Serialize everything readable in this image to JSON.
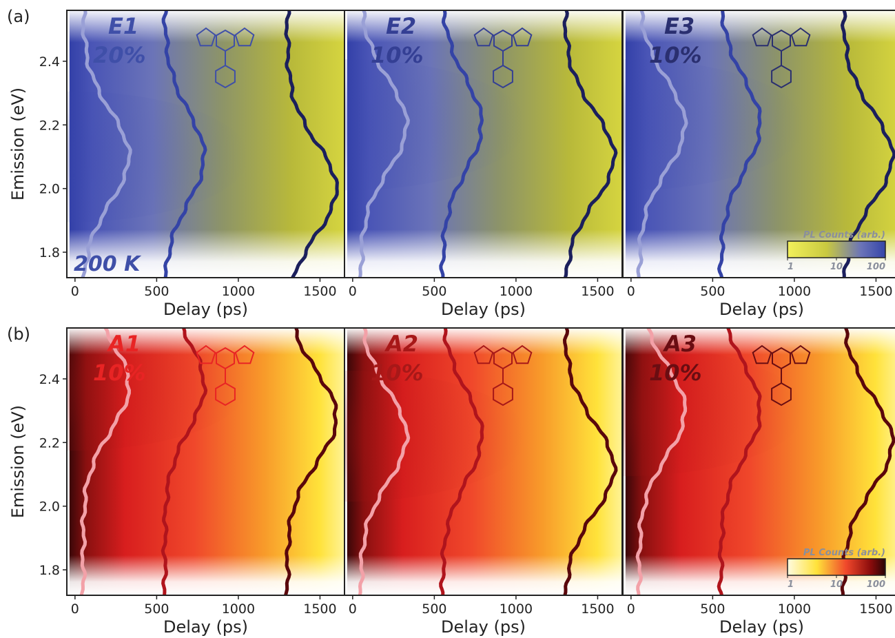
{
  "rows": [
    {
      "letter": "(a)",
      "theme": "blue",
      "colorbar": {
        "title": "PL Counts (arb.)",
        "ticks": [
          "1",
          "10",
          "100"
        ]
      },
      "panels": [
        {
          "label": "E1",
          "percent": "20%",
          "temperature": "200 K",
          "label_color": "#3f4fa8",
          "center_eV": 2.1
        },
        {
          "label": "E2",
          "percent": "10%",
          "label_color": "#343f94",
          "center_eV": 2.2
        },
        {
          "label": "E3",
          "percent": "10%",
          "label_color": "#2a2f70",
          "center_eV": 2.2
        }
      ]
    },
    {
      "letter": "(b)",
      "theme": "red",
      "colorbar": {
        "title": "PL Counts (arb.)",
        "ticks": [
          "1",
          "10",
          "100"
        ]
      },
      "panels": [
        {
          "label": "A1",
          "percent": "10%",
          "label_color": "#e82424",
          "center_eV": 2.38
        },
        {
          "label": "A2",
          "percent": "10%",
          "label_color": "#a71818",
          "center_eV": 2.22
        },
        {
          "label": "A3",
          "percent": "10%",
          "label_color": "#6a0d12",
          "center_eV": 2.3
        }
      ]
    }
  ],
  "chart_data": {
    "type": "heatmap",
    "xlabel": "Delay (ps)",
    "ylabel": "Emission (eV)",
    "xlim": [
      -50,
      1650
    ],
    "ylim": [
      1.72,
      2.56
    ],
    "xticks": [
      0,
      500,
      1000,
      1500
    ],
    "yticks": [
      1.8,
      2.0,
      2.2,
      2.4
    ],
    "colorbar_scale": "log",
    "colorbar_range": [
      1,
      100
    ],
    "spectra_overlays": [
      {
        "offset_ps": 50,
        "blue_color": "#9aa0d6",
        "red_color": "#f3a1a8"
      },
      {
        "offset_ps": 550,
        "blue_color": "#3443a6",
        "red_color": "#b0141c"
      },
      {
        "offset_ps": 1300,
        "blue_color": "#1b1f5c",
        "red_color": "#5a070b"
      }
    ],
    "peak_emission_eV": {
      "E1": 2.1,
      "E2": 2.2,
      "E3": 2.2,
      "A1": 2.38,
      "A2": 2.22,
      "A3": 2.3
    }
  }
}
